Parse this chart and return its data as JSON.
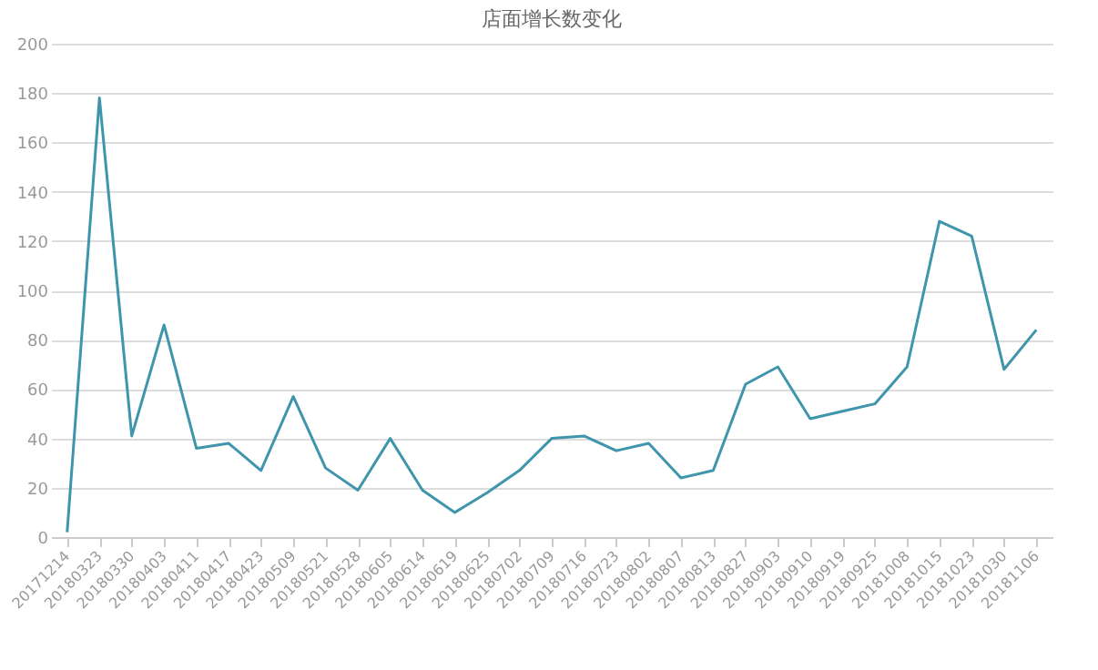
{
  "chart_data": {
    "type": "line",
    "title": "店面增长数变化",
    "categories": [
      "20171214",
      "20180323",
      "20180330",
      "20180403",
      "20180411",
      "20180417",
      "20180423",
      "20180509",
      "20180521",
      "20180528",
      "20180605",
      "20180614",
      "20180619",
      "20180625",
      "20180702",
      "20180709",
      "20180716",
      "20180723",
      "20180802",
      "20180807",
      "20180813",
      "20180827",
      "20180903",
      "20180910",
      "20180919",
      "20180925",
      "20181008",
      "20181015",
      "20181023",
      "20181030",
      "20181106"
    ],
    "series": [
      {
        "color": "#3f95ab",
        "values": [
          2,
          178,
          41,
          86,
          36,
          38,
          27,
          57,
          28,
          19,
          40,
          19,
          10,
          18,
          27,
          40,
          41,
          35,
          38,
          24,
          27,
          62,
          69,
          48,
          51,
          54,
          69,
          128,
          122,
          68,
          84
        ]
      }
    ],
    "ylim": [
      0,
      200
    ],
    "yticks": [
      0,
      20,
      40,
      60,
      80,
      100,
      120,
      140,
      160,
      180,
      200
    ],
    "grid": "y",
    "marker": "none",
    "line_style": "solid"
  }
}
